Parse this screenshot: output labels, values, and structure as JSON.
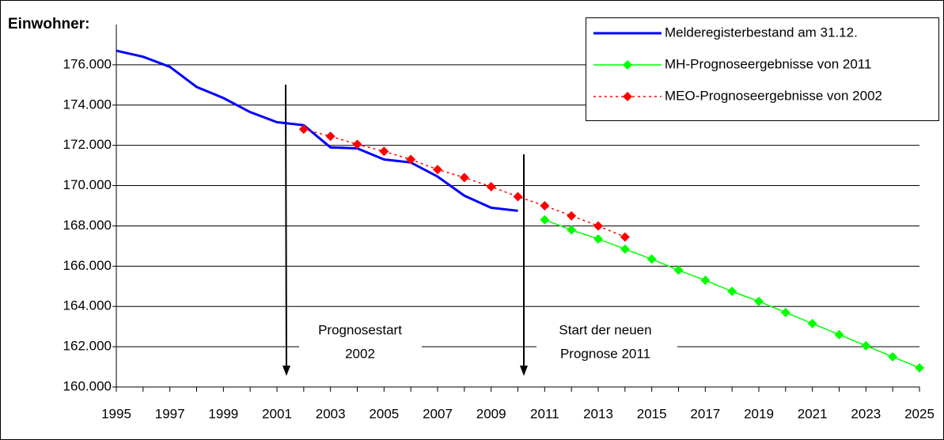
{
  "chart_data": {
    "type": "line",
    "title": "Einwohner:",
    "x": [
      1995,
      1996,
      1997,
      1998,
      1999,
      2000,
      2001,
      2002,
      2003,
      2004,
      2005,
      2006,
      2007,
      2008,
      2009,
      2010,
      2011,
      2012,
      2013,
      2014,
      2015,
      2016,
      2017,
      2018,
      2019,
      2020,
      2021,
      2022,
      2023,
      2024,
      2025
    ],
    "series": [
      {
        "name": "Melderegisterbestand am 31.12.",
        "color": "#0000ff",
        "style": "solid",
        "marker": false,
        "values": [
          176700,
          176400,
          175900,
          174900,
          174350,
          173650,
          173150,
          173000,
          171900,
          171850,
          171300,
          171150,
          170450,
          169500,
          168900,
          168750,
          null,
          null,
          null,
          null,
          null,
          null,
          null,
          null,
          null,
          null,
          null,
          null,
          null,
          null,
          null
        ]
      },
      {
        "name": "MH-Prognoseergebnisse von 2011",
        "color": "#00ff00",
        "style": "solid",
        "marker": true,
        "values": [
          null,
          null,
          null,
          null,
          null,
          null,
          null,
          null,
          null,
          null,
          null,
          null,
          null,
          null,
          null,
          null,
          168300,
          167800,
          167350,
          166850,
          166350,
          165800,
          165300,
          164750,
          164250,
          163700,
          163150,
          162600,
          162050,
          161500,
          160950
        ]
      },
      {
        "name": "MEO-Prognoseergebnisse von 2002",
        "color": "#ff0000",
        "style": "dotted",
        "marker": true,
        "values": [
          null,
          null,
          null,
          null,
          null,
          null,
          null,
          172800,
          172450,
          172050,
          171700,
          171300,
          170800,
          170400,
          169950,
          169450,
          169000,
          168500,
          168000,
          167450,
          null,
          null,
          null,
          null,
          null,
          null,
          null,
          null,
          null,
          null,
          null
        ]
      }
    ],
    "xlim": [
      1995,
      2025
    ],
    "xticks": [
      1995,
      1997,
      1999,
      2001,
      2003,
      2005,
      2007,
      2009,
      2011,
      2013,
      2015,
      2017,
      2019,
      2021,
      2023,
      2025
    ],
    "ylim": [
      160000,
      178000
    ],
    "yticks": [
      {
        "value": 160000,
        "label": "160.000"
      },
      {
        "value": 162000,
        "label": "162.000"
      },
      {
        "value": 164000,
        "label": "164.000"
      },
      {
        "value": 166000,
        "label": "166.000"
      },
      {
        "value": 168000,
        "label": "168.000"
      },
      {
        "value": 170000,
        "label": "170.000"
      },
      {
        "value": 172000,
        "label": "172.000"
      },
      {
        "value": 174000,
        "label": "174.000"
      },
      {
        "value": 176000,
        "label": "176.000"
      }
    ],
    "grid": true,
    "annotations": [
      [
        "Prognosestart",
        "2002"
      ],
      [
        "Start der neuen",
        "Prognose 2011"
      ]
    ]
  }
}
